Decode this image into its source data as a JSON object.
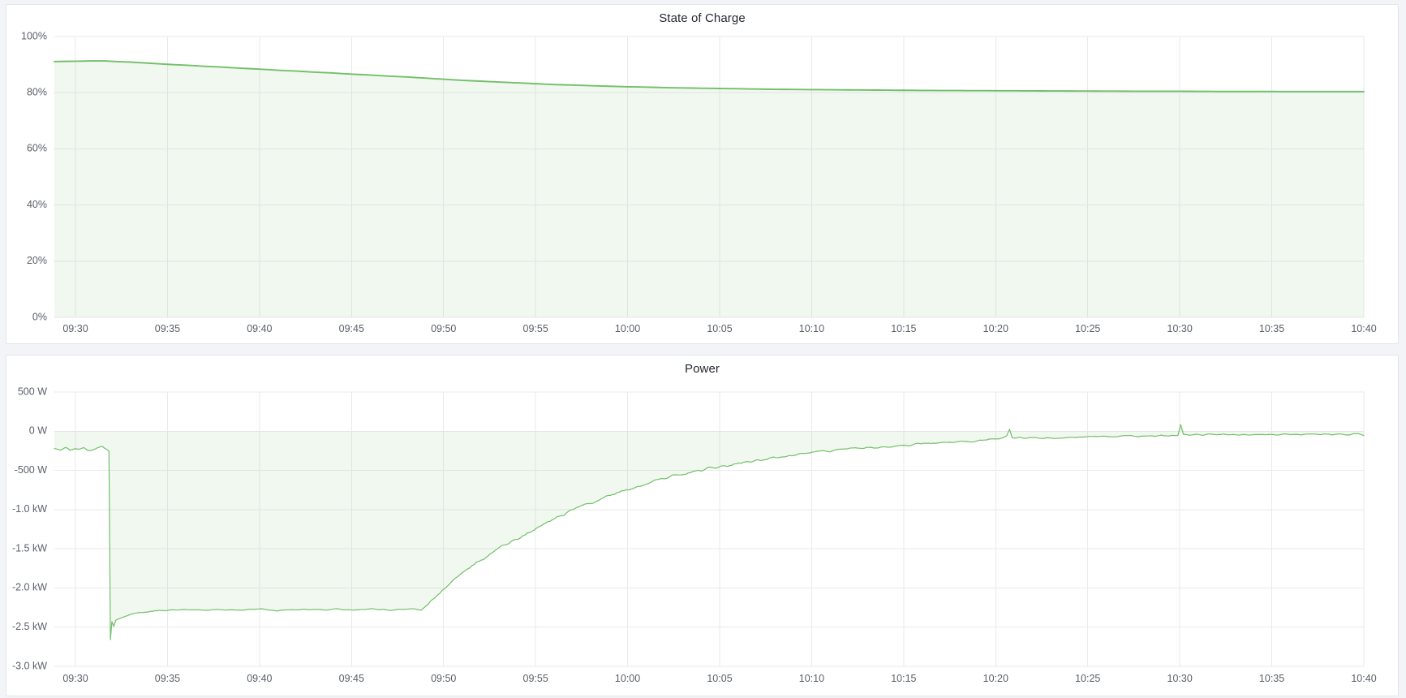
{
  "page": {
    "background_color": "#f3f4f7",
    "panel_background": "#ffffff",
    "panel_border_color": "#e2e5e9",
    "accent_green": "#73BF69"
  },
  "chart_data": [
    {
      "type": "area",
      "title": "State of Charge",
      "unit": "percent",
      "legend": "none",
      "grid": true,
      "color": "#73BF69",
      "fill_opacity": 0.1,
      "line_width": 1.9,
      "ylim": [
        0,
        100
      ],
      "xlim_minutes": [
        -1.15,
        70
      ],
      "x_start_time": "09:30",
      "x_end_time": "10:40",
      "y_tick_labels": [
        "100%",
        "80%",
        "60%",
        "40%",
        "20%",
        "0%"
      ],
      "y_tick_values": [
        100,
        80,
        60,
        40,
        20,
        0
      ],
      "x_tick_labels": [
        "09:30",
        "09:35",
        "09:40",
        "09:45",
        "09:50",
        "09:55",
        "10:00",
        "10:05",
        "10:10",
        "10:15",
        "10:20",
        "10:25",
        "10:30",
        "10:35",
        "10:40"
      ],
      "x_tick_minutes": [
        0,
        5,
        10,
        15,
        20,
        25,
        30,
        35,
        40,
        45,
        50,
        55,
        60,
        65,
        70
      ],
      "fill_to_value": 0,
      "sample_step_minutes": 0.5,
      "noise_zones": [],
      "points": [
        [
          -1.15,
          91.1
        ],
        [
          0,
          91.2
        ],
        [
          0.8,
          91.3
        ],
        [
          1.6,
          91.3
        ],
        [
          2.2,
          91.1
        ],
        [
          3,
          90.9
        ],
        [
          4,
          90.5
        ],
        [
          5,
          90.1
        ],
        [
          6,
          89.8
        ],
        [
          7,
          89.4
        ],
        [
          8,
          89.1
        ],
        [
          9,
          88.7
        ],
        [
          10,
          88.4
        ],
        [
          11,
          88.0
        ],
        [
          12,
          87.7
        ],
        [
          13,
          87.3
        ],
        [
          14,
          87.0
        ],
        [
          15,
          86.6
        ],
        [
          16,
          86.3
        ],
        [
          17,
          85.9
        ],
        [
          18,
          85.6
        ],
        [
          19,
          85.2
        ],
        [
          20,
          84.8
        ],
        [
          21,
          84.4
        ],
        [
          22,
          84.1
        ],
        [
          23,
          83.8
        ],
        [
          24,
          83.5
        ],
        [
          25,
          83.2
        ],
        [
          26,
          82.9
        ],
        [
          27,
          82.7
        ],
        [
          28,
          82.5
        ],
        [
          29,
          82.3
        ],
        [
          30,
          82.1
        ],
        [
          31,
          82.0
        ],
        [
          32,
          81.8
        ],
        [
          33,
          81.7
        ],
        [
          34,
          81.6
        ],
        [
          35,
          81.5
        ],
        [
          36,
          81.4
        ],
        [
          37,
          81.3
        ],
        [
          38,
          81.2
        ],
        [
          40,
          81.1
        ],
        [
          42,
          81.0
        ],
        [
          44,
          80.9
        ],
        [
          46,
          80.8
        ],
        [
          48,
          80.75
        ],
        [
          50,
          80.7
        ],
        [
          52,
          80.65
        ],
        [
          54,
          80.6
        ],
        [
          56,
          80.55
        ],
        [
          58,
          80.5
        ],
        [
          60,
          80.5
        ],
        [
          62,
          80.45
        ],
        [
          64,
          80.45
        ],
        [
          66,
          80.4
        ],
        [
          68,
          80.4
        ],
        [
          70,
          80.4
        ]
      ]
    },
    {
      "type": "area",
      "title": "Power",
      "unit": "watt",
      "legend": "none",
      "grid": true,
      "color": "#73BF69",
      "fill_opacity": 0.1,
      "line_width": 1.2,
      "ylim": [
        -3000,
        500
      ],
      "xlim_minutes": [
        -1.15,
        70
      ],
      "x_start_time": "09:30",
      "x_end_time": "10:40",
      "y_tick_labels": [
        "500 W",
        "0 W",
        "-500 W",
        "-1.0 kW",
        "-1.5 kW",
        "-2.0 kW",
        "-2.5 kW",
        "-3.0 kW"
      ],
      "y_tick_values": [
        500,
        0,
        -500,
        -1000,
        -1500,
        -2000,
        -2500,
        -3000
      ],
      "x_tick_labels": [
        "09:30",
        "09:35",
        "09:40",
        "09:45",
        "09:50",
        "09:55",
        "10:00",
        "10:05",
        "10:10",
        "10:15",
        "10:20",
        "10:25",
        "10:30",
        "10:35",
        "10:40"
      ],
      "x_tick_minutes": [
        0,
        5,
        10,
        15,
        20,
        25,
        30,
        35,
        40,
        45,
        50,
        55,
        60,
        65,
        70
      ],
      "fill_to_value": 0,
      "sample_step_minutes": 0.12,
      "noise_zones": [
        [
          -1.15,
          1.75,
          14
        ],
        [
          2.4,
          18.8,
          13
        ],
        [
          19.3,
          39.5,
          27
        ],
        [
          39.5,
          50.4,
          20
        ],
        [
          51.2,
          59.7,
          17
        ],
        [
          60.4,
          69.5,
          13
        ]
      ],
      "points": [
        [
          -1.15,
          -215
        ],
        [
          -0.8,
          -240
        ],
        [
          -0.55,
          -210
        ],
        [
          -0.3,
          -245
        ],
        [
          -0.05,
          -220
        ],
        [
          0.2,
          -235
        ],
        [
          0.45,
          -210
        ],
        [
          0.7,
          -240
        ],
        [
          0.95,
          -230
        ],
        [
          1.2,
          -215
        ],
        [
          1.45,
          -190
        ],
        [
          1.7,
          -225
        ],
        [
          1.82,
          -255
        ],
        [
          1.9,
          -2660
        ],
        [
          1.98,
          -2430
        ],
        [
          2.08,
          -2490
        ],
        [
          2.2,
          -2410
        ],
        [
          2.4,
          -2390
        ],
        [
          2.7,
          -2360
        ],
        [
          3.1,
          -2330
        ],
        [
          3.6,
          -2310
        ],
        [
          4.2,
          -2295
        ],
        [
          5,
          -2285
        ],
        [
          6,
          -2275
        ],
        [
          7,
          -2285
        ],
        [
          8,
          -2270
        ],
        [
          9,
          -2280
        ],
        [
          10,
          -2270
        ],
        [
          11,
          -2285
        ],
        [
          12,
          -2270
        ],
        [
          13,
          -2280
        ],
        [
          14,
          -2268
        ],
        [
          15,
          -2280
        ],
        [
          16,
          -2270
        ],
        [
          17,
          -2282
        ],
        [
          18,
          -2272
        ],
        [
          18.8,
          -2280
        ],
        [
          19.3,
          -2180
        ],
        [
          19.8,
          -2060
        ],
        [
          20.3,
          -1950
        ],
        [
          20.8,
          -1850
        ],
        [
          21.3,
          -1760
        ],
        [
          21.8,
          -1680
        ],
        [
          22.3,
          -1600
        ],
        [
          22.8,
          -1520
        ],
        [
          23.3,
          -1450
        ],
        [
          23.8,
          -1390
        ],
        [
          24.3,
          -1330
        ],
        [
          24.8,
          -1270
        ],
        [
          25.3,
          -1210
        ],
        [
          25.8,
          -1150
        ],
        [
          26.3,
          -1090
        ],
        [
          26.8,
          -1030
        ],
        [
          27.3,
          -980
        ],
        [
          27.8,
          -930
        ],
        [
          28.3,
          -880
        ],
        [
          28.8,
          -840
        ],
        [
          29.3,
          -800
        ],
        [
          29.8,
          -760
        ],
        [
          30.3,
          -720
        ],
        [
          30.8,
          -690
        ],
        [
          31.3,
          -650
        ],
        [
          31.8,
          -620
        ],
        [
          32.3,
          -590
        ],
        [
          32.8,
          -560
        ],
        [
          33.3,
          -530
        ],
        [
          33.8,
          -505
        ],
        [
          34.3,
          -480
        ],
        [
          34.8,
          -460
        ],
        [
          35.3,
          -440
        ],
        [
          35.8,
          -420
        ],
        [
          36.3,
          -400
        ],
        [
          36.8,
          -385
        ],
        [
          37.3,
          -365
        ],
        [
          37.8,
          -345
        ],
        [
          38.3,
          -330
        ],
        [
          38.8,
          -315
        ],
        [
          39.3,
          -300
        ],
        [
          39.8,
          -285
        ],
        [
          40.5,
          -265
        ],
        [
          41.5,
          -240
        ],
        [
          42.5,
          -220
        ],
        [
          43.5,
          -200
        ],
        [
          44.5,
          -185
        ],
        [
          45.5,
          -170
        ],
        [
          46.5,
          -155
        ],
        [
          47.5,
          -140
        ],
        [
          48.5,
          -125
        ],
        [
          49.5,
          -110
        ],
        [
          50.3,
          -95
        ],
        [
          50.6,
          -60
        ],
        [
          50.75,
          25
        ],
        [
          50.9,
          -85
        ],
        [
          51.5,
          -90
        ],
        [
          52.5,
          -85
        ],
        [
          53.5,
          -80
        ],
        [
          54.5,
          -75
        ],
        [
          55.5,
          -72
        ],
        [
          56.5,
          -68
        ],
        [
          57.5,
          -65
        ],
        [
          58.5,
          -62
        ],
        [
          59.4,
          -60
        ],
        [
          59.9,
          -55
        ],
        [
          60.05,
          85
        ],
        [
          60.2,
          -40
        ],
        [
          61,
          -45
        ],
        [
          62,
          -38
        ],
        [
          63,
          -45
        ],
        [
          64,
          -38
        ],
        [
          65,
          -44
        ],
        [
          66,
          -38
        ],
        [
          67,
          -44
        ],
        [
          68,
          -38
        ],
        [
          69,
          -45
        ],
        [
          69.7,
          -30
        ],
        [
          70,
          -55
        ]
      ]
    }
  ]
}
